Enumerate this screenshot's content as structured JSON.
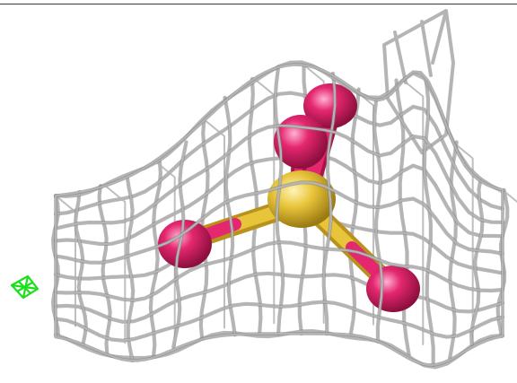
{
  "scene": {
    "background": "#ffffff",
    "mesh_color": "#b4b4b4",
    "mesh_shadow": "#7d7d7d",
    "sulfur_color": "#e8c43a",
    "oxygen_color": "#e5276f",
    "marker_color": "#19e019",
    "top_rule_color": "#3a3a3a"
  }
}
